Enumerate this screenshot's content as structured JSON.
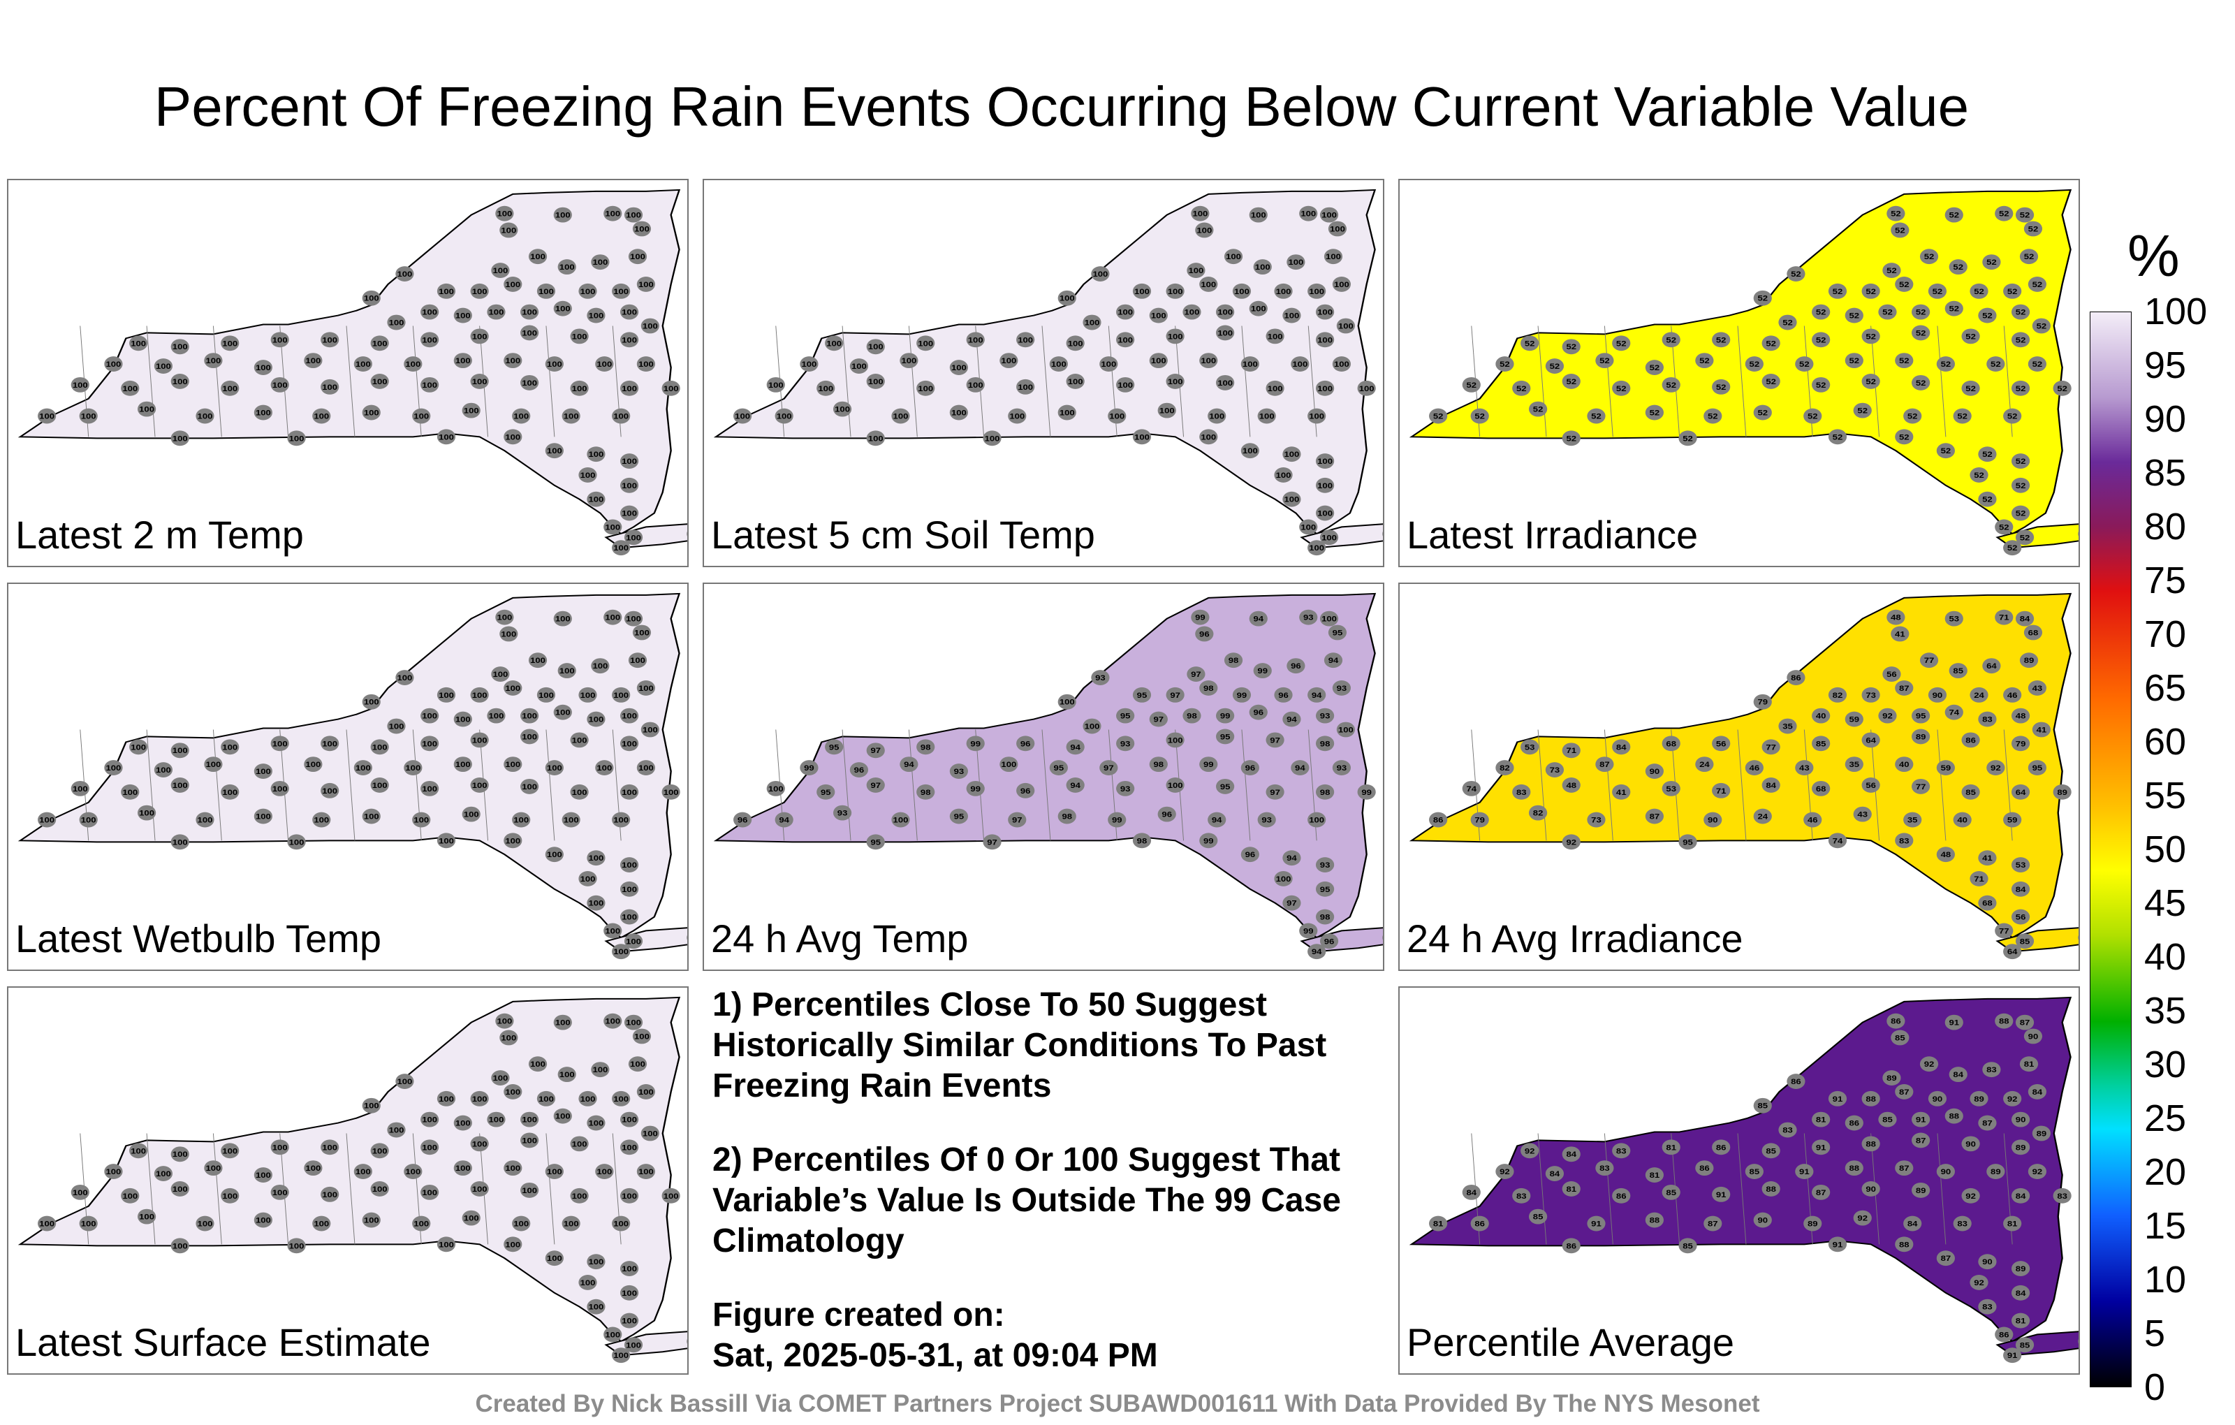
{
  "title": "Percent Of Freezing Rain Events Occurring Below Current Variable Value",
  "panels": [
    {
      "label": "Latest 2 m Temp",
      "fill": "#f0eaf4",
      "station_values": [
        "100"
      ]
    },
    {
      "label": "Latest 5 cm Soil Temp",
      "fill": "#f0eaf4",
      "station_values": [
        "100"
      ]
    },
    {
      "label": "Latest Irradiance",
      "fill": "#ffff00",
      "station_values": [
        "52"
      ]
    },
    {
      "label": "Latest Wetbulb Temp",
      "fill": "#f0eaf4",
      "station_values": [
        "100"
      ]
    },
    {
      "label": "24 h Avg Temp",
      "fill": "#c9b0dc",
      "station_values": [
        "99",
        "96",
        "94",
        "93",
        "100",
        "95",
        "97",
        "98"
      ]
    },
    {
      "label": "24 h Avg Irradiance",
      "fill": "#ffe000",
      "station_values": [
        "48",
        "41",
        "53",
        "71",
        "84",
        "68",
        "56",
        "77",
        "85",
        "64",
        "89",
        "86",
        "79",
        "82",
        "73",
        "87",
        "90",
        "24",
        "46",
        "43",
        "35",
        "40",
        "59",
        "92",
        "95",
        "74",
        "83"
      ]
    },
    {
      "label": "Latest Surface Estimate",
      "fill": "#f0eaf4",
      "station_values": [
        "100"
      ]
    },
    {
      "label": "Percentile Average",
      "fill": "#5c1a8e",
      "station_values": [
        "86",
        "85",
        "91",
        "88",
        "87",
        "90",
        "89",
        "92",
        "84",
        "83",
        "81"
      ]
    }
  ],
  "notes": [
    "1) Percentiles Close To 50 Suggest Historically Similar Conditions To Past Freezing Rain Events",
    "2) Percentiles Of 0 Or 100 Suggest That Variable’s Value Is Outside The 99 Case Climatology"
  ],
  "created_label": "Figure created on:",
  "created_date": "Sat, 2025-05-31, at 09:04 PM",
  "credit": "Created By Nick Bassill Via COMET Partners Project SUBAWD001611 With Data Provided By The NYS Mesonet",
  "colorbar": {
    "unit": "%",
    "min": 0,
    "max": 100,
    "ticks": [
      "100",
      "95",
      "90",
      "85",
      "80",
      "75",
      "70",
      "65",
      "60",
      "55",
      "50",
      "45",
      "40",
      "35",
      "30",
      "25",
      "20",
      "15",
      "10",
      "5",
      "0"
    ]
  }
}
